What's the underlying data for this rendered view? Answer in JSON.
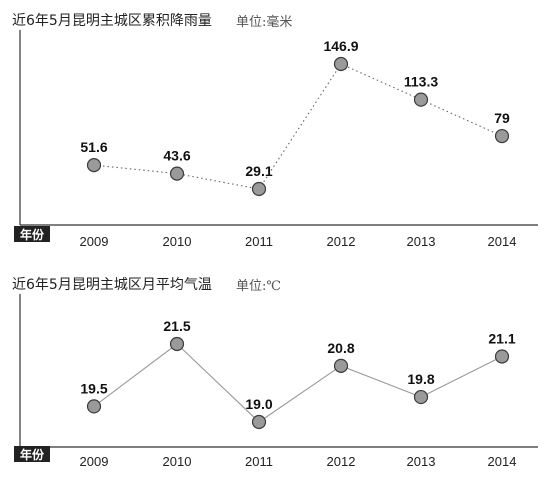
{
  "chart_data": [
    {
      "type": "line",
      "title": "近6年5月昆明主城区累积降雨量",
      "unit": "单位:毫米",
      "xlabel": "年份",
      "categories": [
        "2009",
        "2010",
        "2011",
        "2012",
        "2013",
        "2014"
      ],
      "values": [
        51.6,
        43.6,
        29.1,
        146.9,
        113.3,
        79
      ],
      "value_labels": [
        "51.6",
        "43.6",
        "29.1",
        "146.9",
        "113.3",
        "79"
      ],
      "line_style": "dotted",
      "grid": false
    },
    {
      "type": "line",
      "title": "近6年5月昆明主城区月平均气温",
      "unit": "单位:℃",
      "xlabel": "年份",
      "categories": [
        "2009",
        "2010",
        "2011",
        "2012",
        "2013",
        "2014"
      ],
      "values": [
        19.5,
        21.5,
        19.0,
        20.8,
        19.8,
        21.1
      ],
      "value_labels": [
        "19.5",
        "21.5",
        "19.0",
        "20.8",
        "19.8",
        "21.1"
      ],
      "line_style": "solid",
      "grid": false
    }
  ]
}
